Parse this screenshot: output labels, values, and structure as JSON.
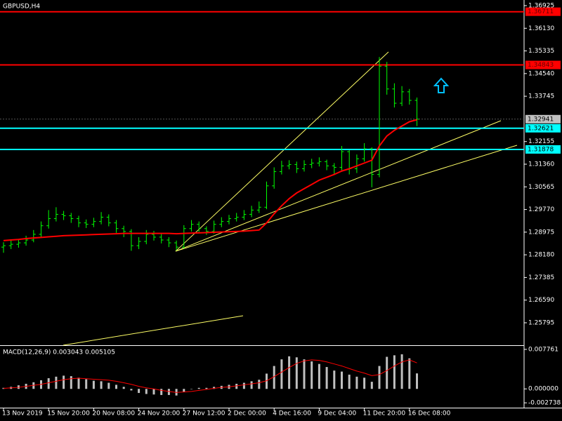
{
  "chart_data": [
    {
      "type": "ohlc",
      "title": "GBPUSD,H4",
      "bar_color": "#00ff00",
      "categories": [
        "13 Nov 2019",
        null,
        null,
        null,
        null,
        null,
        "15 Nov 20:00",
        null,
        null,
        null,
        null,
        null,
        "20 Nov 08:00",
        null,
        null,
        null,
        null,
        null,
        "24 Nov 20:00",
        null,
        null,
        null,
        null,
        null,
        "27 Nov 12:00",
        null,
        null,
        null,
        null,
        null,
        "2 Dec 00:00",
        null,
        null,
        null,
        null,
        null,
        "4 Dec 16:00",
        null,
        null,
        null,
        null,
        null,
        "9 Dec 04:00",
        null,
        null,
        null,
        null,
        null,
        "11 Dec 20:00",
        null,
        null,
        null,
        null,
        null,
        "16 Dec 08:00",
        null
      ],
      "open": [
        1.2845,
        1.285,
        1.2855,
        1.286,
        1.287,
        1.289,
        1.292,
        1.2945,
        1.296,
        1.2955,
        1.2945,
        1.293,
        1.2925,
        1.2935,
        1.295,
        1.293,
        1.291,
        1.29,
        1.285,
        1.2865,
        1.289,
        1.288,
        1.287,
        1.286,
        1.2845,
        1.291,
        1.2925,
        1.291,
        1.29,
        1.2925,
        1.2935,
        1.2945,
        1.295,
        1.296,
        1.2975,
        1.2985,
        1.306,
        1.311,
        1.313,
        1.3135,
        1.312,
        1.3135,
        1.314,
        1.3145,
        1.313,
        1.3125,
        1.318,
        1.312,
        1.3155,
        1.319,
        1.31,
        1.348,
        1.34,
        1.335,
        1.339,
        1.336
      ],
      "high": [
        1.2862,
        1.2868,
        1.2872,
        1.2885,
        1.2905,
        1.2935,
        1.2975,
        1.2985,
        1.2972,
        1.2965,
        1.2955,
        1.2942,
        1.2948,
        1.2968,
        1.296,
        1.294,
        1.292,
        1.2908,
        1.288,
        1.2905,
        1.2902,
        1.2892,
        1.288,
        1.2868,
        1.2922,
        1.294,
        1.2935,
        1.2918,
        1.2938,
        1.295,
        1.2958,
        1.2965,
        1.2975,
        1.299,
        1.3005,
        1.3075,
        1.3125,
        1.3148,
        1.315,
        1.3145,
        1.315,
        1.3155,
        1.316,
        1.3152,
        1.314,
        1.32,
        1.3185,
        1.317,
        1.321,
        1.3195,
        1.3512,
        1.3495,
        1.342,
        1.341,
        1.34,
        1.337
      ],
      "low": [
        1.2825,
        1.2838,
        1.2843,
        1.285,
        1.2862,
        1.288,
        1.291,
        1.2935,
        1.294,
        1.293,
        1.2915,
        1.2912,
        1.2915,
        1.2925,
        1.2918,
        1.2895,
        1.288,
        1.2832,
        1.2838,
        1.2855,
        1.2868,
        1.2858,
        1.2845,
        1.2833,
        1.284,
        1.29,
        1.2898,
        1.2888,
        1.2892,
        1.2915,
        1.2925,
        1.2935,
        1.294,
        1.295,
        1.2965,
        1.2978,
        1.305,
        1.31,
        1.3118,
        1.3105,
        1.311,
        1.3122,
        1.3128,
        1.3115,
        1.31,
        1.3115,
        1.31,
        1.3105,
        1.3145,
        1.3055,
        1.309,
        1.338,
        1.3335,
        1.334,
        1.3345,
        1.327
      ],
      "close": [
        1.285,
        1.2855,
        1.286,
        1.287,
        1.289,
        1.292,
        1.2945,
        1.296,
        1.2955,
        1.2945,
        1.293,
        1.2925,
        1.2935,
        1.295,
        1.293,
        1.291,
        1.29,
        1.285,
        1.2865,
        1.289,
        1.288,
        1.287,
        1.286,
        1.2845,
        1.291,
        1.2925,
        1.291,
        1.29,
        1.2925,
        1.2935,
        1.2945,
        1.295,
        1.296,
        1.2975,
        1.2985,
        1.306,
        1.311,
        1.313,
        1.3135,
        1.312,
        1.3135,
        1.314,
        1.3145,
        1.313,
        1.3125,
        1.318,
        1.312,
        1.3155,
        1.319,
        1.31,
        1.348,
        1.34,
        1.335,
        1.339,
        1.336,
        1.3294
      ],
      "ma": {
        "color": "#ff0000",
        "values": [
          1.2868,
          1.287,
          1.2872,
          1.2875,
          1.2877,
          1.2879,
          1.2881,
          1.2883,
          1.2885,
          1.2886,
          1.2887,
          1.2888,
          1.2889,
          1.289,
          1.2891,
          1.2892,
          1.2893,
          1.2893,
          1.2893,
          1.2893,
          1.2893,
          1.2893,
          1.2893,
          1.2892,
          1.2893,
          1.2894,
          1.2895,
          1.2896,
          1.2897,
          1.2898,
          1.2899,
          1.29,
          1.2901,
          1.2903,
          1.2905,
          1.293,
          1.2962,
          1.299,
          1.3015,
          1.3035,
          1.305,
          1.3065,
          1.308,
          1.309,
          1.31,
          1.3112,
          1.312,
          1.313,
          1.314,
          1.315,
          1.32,
          1.3235,
          1.3255,
          1.327,
          1.3285,
          1.3292
        ]
      },
      "levels": [
        {
          "value": 1.36711,
          "color": "#ff0000"
        },
        {
          "value": 1.34843,
          "color": "#ff0000"
        },
        {
          "value": 1.32621,
          "color": "#00ffff"
        },
        {
          "value": 1.31878,
          "color": "#00ffff"
        }
      ],
      "current_price": {
        "value": 1.32941,
        "color": "#c0c0c0"
      },
      "ylim": [
        1.25007,
        1.37122
      ],
      "yticks": [
        1.36925,
        {
          "value": 1.3613,
          "label": "1.36130"
        },
        1.35335,
        {
          "value": 1.3454,
          "label": "1.34540"
        },
        1.33745,
        1.32155,
        {
          "value": 1.3136,
          "label": "1.31360"
        },
        1.30565,
        {
          "value": 1.2977,
          "label": "1.29770"
        },
        1.28975,
        {
          "value": 1.2818,
          "label": "1.28180"
        },
        1.27385,
        {
          "value": 1.2659,
          "label": "1.26590"
        },
        1.25795
      ]
    },
    {
      "type": "macd",
      "title": "MACD(12,26,9) 0.003043 0.005105",
      "series": [
        {
          "color": "#c0c0c0",
          "values": [
            0.0002,
            0.0004,
            0.0007,
            0.001,
            0.0013,
            0.0017,
            0.0021,
            0.0024,
            0.0026,
            0.0025,
            0.0022,
            0.0019,
            0.0016,
            0.0015,
            0.0012,
            0.0008,
            0.0004,
            -0.0003,
            -0.0008,
            -0.001,
            -0.0011,
            -0.0012,
            -0.0012,
            -0.0013,
            -0.0006,
            0.0,
            0.0002,
            0.0002,
            0.0004,
            0.0006,
            0.0008,
            0.001,
            0.0012,
            0.0015,
            0.0018,
            0.003,
            0.0045,
            0.0058,
            0.0064,
            0.0062,
            0.0058,
            0.0054,
            0.0049,
            0.0043,
            0.0036,
            0.0034,
            0.0028,
            0.0024,
            0.0022,
            0.0014,
            0.0045,
            0.0063,
            0.0066,
            0.0068,
            0.006,
            0.003043
          ]
        },
        {
          "color": "#ff0000",
          "values": [
            0.0001,
            0.0002,
            0.0003,
            0.0005,
            0.0007,
            0.0009,
            0.0012,
            0.0015,
            0.0018,
            0.002,
            0.0021,
            0.002,
            0.0019,
            0.0018,
            0.0017,
            0.0015,
            0.0012,
            0.0009,
            0.0005,
            0.0002,
            0.0,
            -0.0003,
            -0.0005,
            -0.0007,
            -0.0006,
            -0.0005,
            -0.0003,
            -0.0001,
            0.0001,
            0.0003,
            0.0004,
            0.0006,
            0.0008,
            0.001,
            0.0012,
            0.0016,
            0.0024,
            0.0033,
            0.0042,
            0.005,
            0.0055,
            0.0057,
            0.0056,
            0.0053,
            0.0049,
            0.0045,
            0.004,
            0.0035,
            0.0031,
            0.0026,
            0.0028,
            0.0036,
            0.0045,
            0.0053,
            0.0057,
            0.005105
          ]
        }
      ],
      "ylim": [
        -0.00355,
        0.00844
      ],
      "yticks": [
        0.007761,
        {
          "value": 0,
          "label": "0.000000"
        },
        -0.002738
      ]
    }
  ]
}
